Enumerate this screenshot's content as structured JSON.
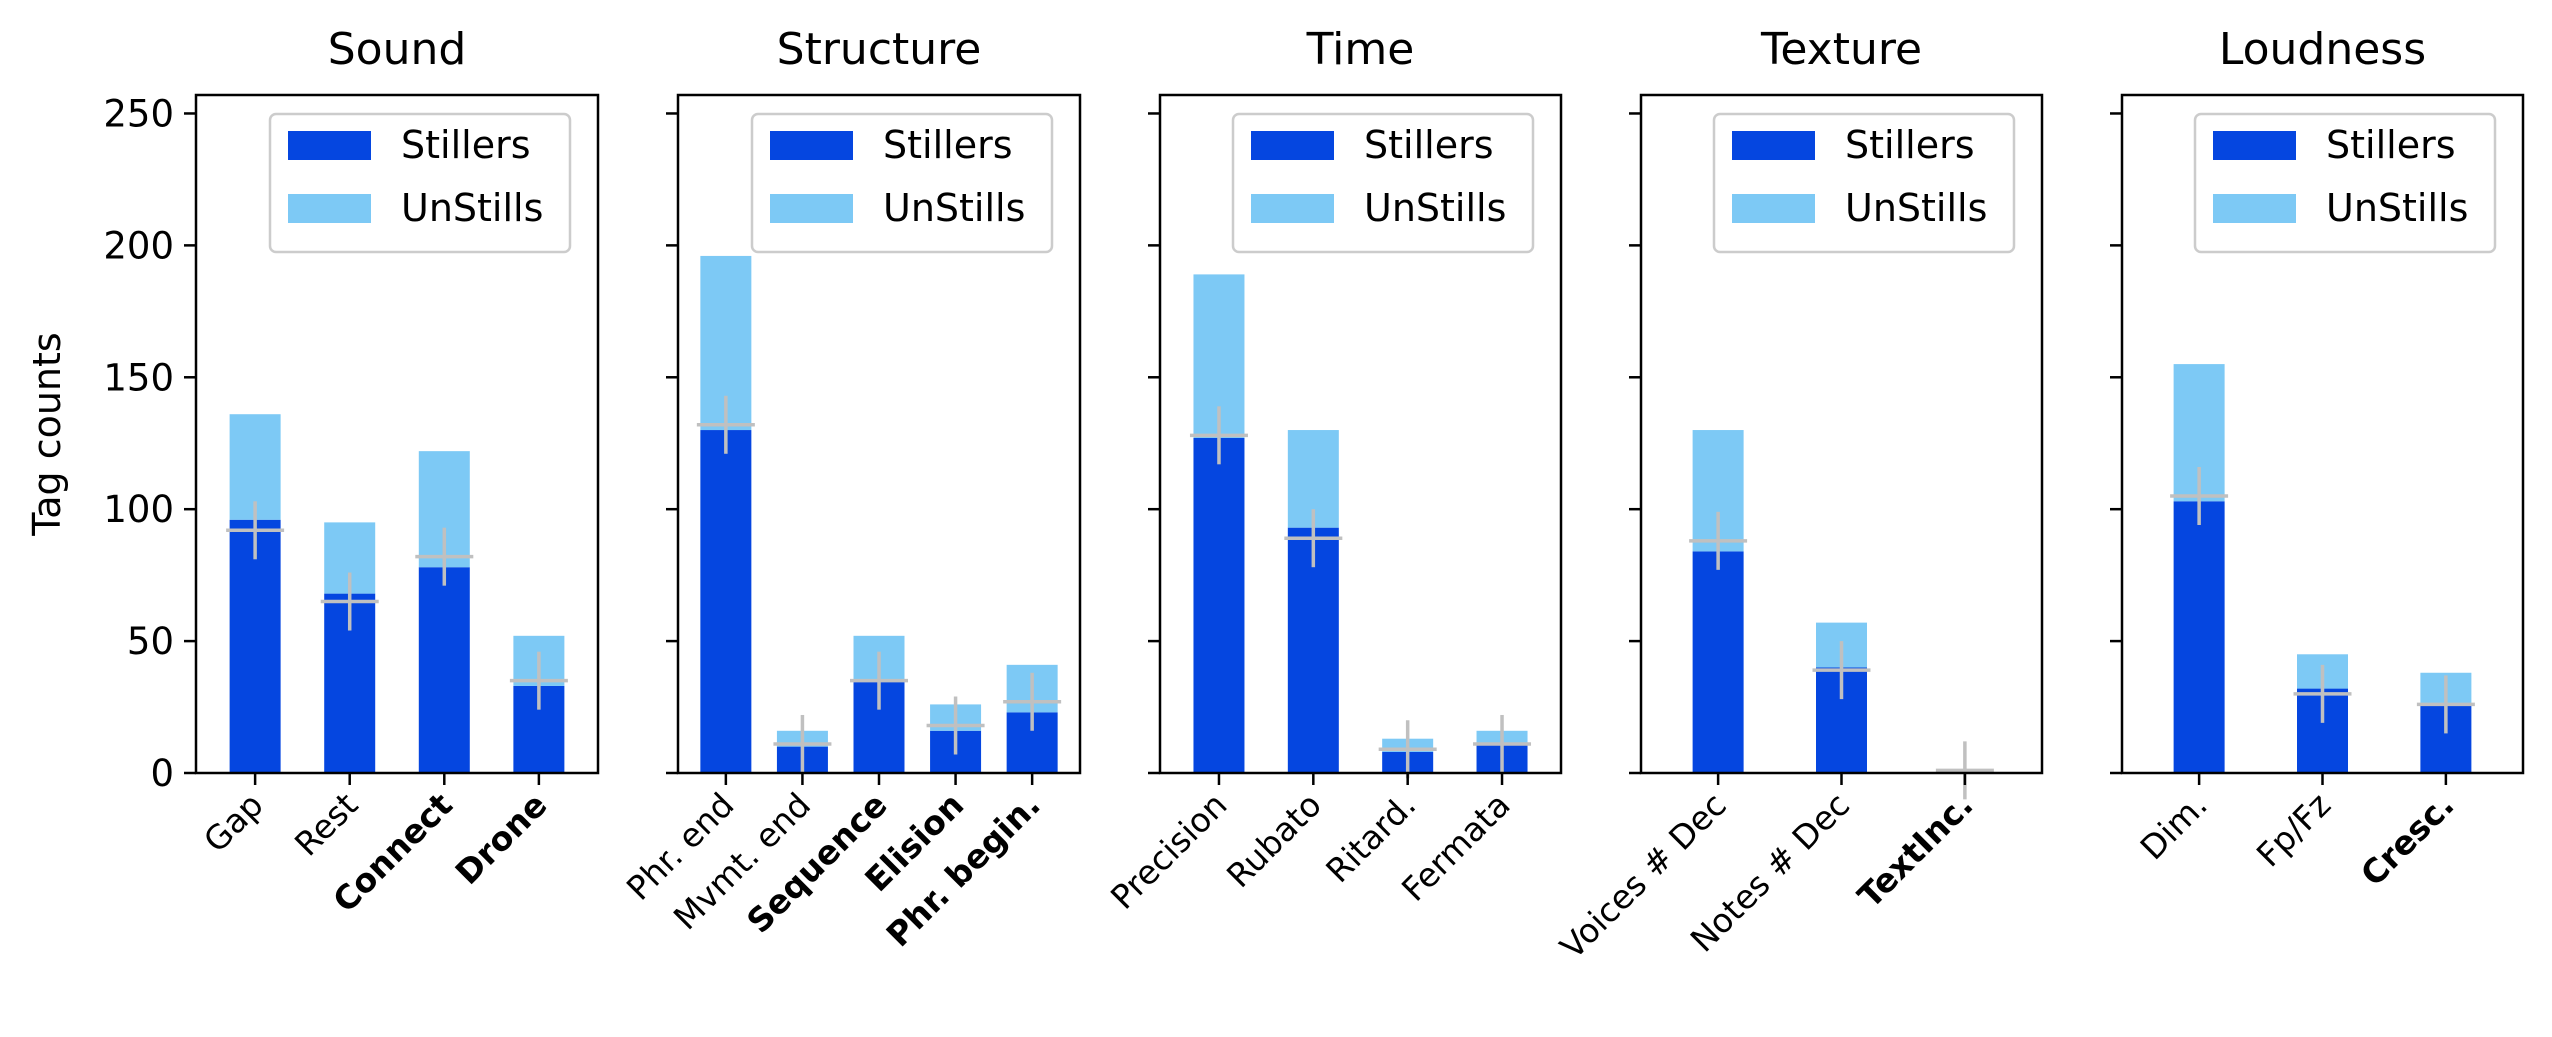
{
  "ylabel": "Tag counts",
  "colors": {
    "stillers": "#0546e0",
    "unstills": "#7dc9f5",
    "marker": "#c0c0c0",
    "axis": "#000000"
  },
  "legend": {
    "placement": "top-right",
    "labels": [
      "Stillers",
      "UnStills"
    ]
  },
  "chart_data": [
    {
      "type": "bar",
      "title": "Sound",
      "stacked": true,
      "ylim": [
        0,
        257
      ],
      "yticks": [
        0,
        50,
        100,
        150,
        200,
        250
      ],
      "categories": [
        "Gap",
        "Rest",
        "Connect",
        "Drone"
      ],
      "bold_categories": [
        "Connect",
        "Drone"
      ],
      "series": [
        {
          "name": "Stillers",
          "values": [
            96,
            68,
            78,
            33
          ]
        },
        {
          "name": "UnStills",
          "values": [
            40,
            27,
            44,
            19
          ]
        }
      ],
      "markers": [
        92,
        65,
        82,
        35
      ]
    },
    {
      "type": "bar",
      "title": "Structure",
      "stacked": true,
      "ylim": [
        0,
        257
      ],
      "yticks": [
        0,
        50,
        100,
        150,
        200,
        250
      ],
      "categories": [
        "Phr. end",
        "Mvmt. end",
        "Sequence",
        "Elision",
        "Phr. begin."
      ],
      "bold_categories": [
        "Sequence",
        "Elision",
        "Phr. begin."
      ],
      "series": [
        {
          "name": "Stillers",
          "values": [
            130,
            10,
            35,
            16,
            23
          ]
        },
        {
          "name": "UnStills",
          "values": [
            66,
            6,
            17,
            10,
            18
          ]
        }
      ],
      "markers": [
        132,
        11,
        35,
        18,
        27
      ]
    },
    {
      "type": "bar",
      "title": "Time",
      "stacked": true,
      "ylim": [
        0,
        257
      ],
      "yticks": [
        0,
        50,
        100,
        150,
        200,
        250
      ],
      "categories": [
        "Precision",
        "Rubato",
        "Ritard.",
        "Fermata"
      ],
      "bold_categories": [],
      "series": [
        {
          "name": "Stillers",
          "values": [
            127,
            93,
            8,
            11
          ]
        },
        {
          "name": "UnStills",
          "values": [
            62,
            37,
            5,
            5
          ]
        }
      ],
      "markers": [
        128,
        89,
        9,
        11
      ]
    },
    {
      "type": "bar",
      "title": "Texture",
      "stacked": true,
      "ylim": [
        0,
        257
      ],
      "yticks": [
        0,
        50,
        100,
        150,
        200,
        250
      ],
      "categories": [
        "Voices # Dec",
        "Notes # Dec",
        "TextInc."
      ],
      "bold_categories": [
        "TextInc."
      ],
      "series": [
        {
          "name": "Stillers",
          "values": [
            84,
            40,
            0
          ]
        },
        {
          "name": "UnStills",
          "values": [
            46,
            17,
            0
          ]
        }
      ],
      "markers": [
        88,
        39,
        1
      ]
    },
    {
      "type": "bar",
      "title": "Loudness",
      "stacked": true,
      "ylim": [
        0,
        257
      ],
      "yticks": [
        0,
        50,
        100,
        150,
        200,
        250
      ],
      "categories": [
        "Dim.",
        "Fp/Fz",
        "Cresc."
      ],
      "bold_categories": [
        "Cresc."
      ],
      "series": [
        {
          "name": "Stillers",
          "values": [
            103,
            32,
            26
          ]
        },
        {
          "name": "UnStills",
          "values": [
            52,
            13,
            12
          ]
        }
      ],
      "markers": [
        105,
        30,
        26
      ]
    }
  ]
}
